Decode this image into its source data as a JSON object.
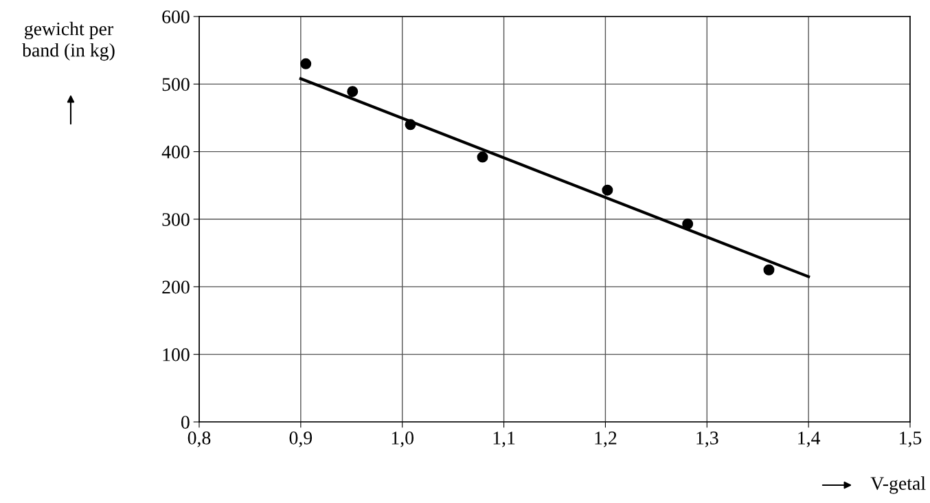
{
  "chart_data": {
    "type": "scatter",
    "xlabel": "V-getal",
    "ylabel": "gewicht per\nband (in kg)",
    "series": [
      {
        "color": "#000000",
        "marker": "circle",
        "x": [
          0.905,
          0.951,
          1.008,
          1.079,
          1.202,
          1.281,
          1.361
        ],
        "values": [
          530,
          489,
          440,
          392,
          343,
          293,
          225
        ]
      },
      {
        "type": "line",
        "color": "#000000",
        "marker": "none",
        "line_style": "solid",
        "x": [
          0.9,
          1.4
        ],
        "values": [
          508,
          215
        ]
      }
    ],
    "xlim": [
      0.8,
      1.5
    ],
    "ylim": [
      0,
      600
    ],
    "xticks": [
      {
        "value": 0.8,
        "label": "0,8"
      },
      {
        "value": 0.9,
        "label": "0,9"
      },
      {
        "value": 1.0,
        "label": "1,0"
      },
      {
        "value": 1.1,
        "label": "1,1"
      },
      {
        "value": 1.2,
        "label": "1,2"
      },
      {
        "value": 1.3,
        "label": "1,3"
      },
      {
        "value": 1.4,
        "label": "1,4"
      },
      {
        "value": 1.5,
        "label": "1,5"
      }
    ],
    "yticks": [
      0,
      100,
      200,
      300,
      400,
      500,
      600
    ],
    "grid": true,
    "legend": false
  }
}
